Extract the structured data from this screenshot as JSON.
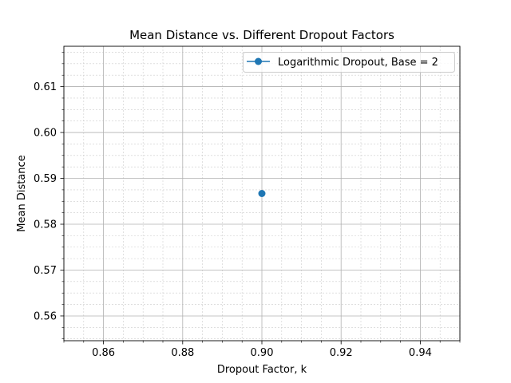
{
  "chart_data": {
    "type": "scatter",
    "title": "Mean Distance vs. Different Dropout Factors",
    "xlabel": "Dropout Factor, k",
    "ylabel": "Mean Distance",
    "xlim": [
      0.85,
      0.95
    ],
    "ylim": [
      0.5546,
      0.6188
    ],
    "x_ticks": [
      0.86,
      0.88,
      0.9,
      0.92,
      0.94
    ],
    "x_tick_labels": [
      "0.86",
      "0.88",
      "0.90",
      "0.92",
      "0.94"
    ],
    "y_ticks": [
      0.56,
      0.57,
      0.58,
      0.59,
      0.6,
      0.61
    ],
    "y_tick_labels": [
      "0.56",
      "0.57",
      "0.58",
      "0.59",
      "0.60",
      "0.61"
    ],
    "x_minor_step": 0.005,
    "y_minor_step": 0.0025,
    "grid": true,
    "minor_grid": true,
    "legend_position": "top-right",
    "series": [
      {
        "name": "Logarithmic Dropout, Base = 2",
        "color": "#1f77b4",
        "marker": "circle",
        "points": [
          {
            "x": 0.9,
            "y": 0.5867
          }
        ]
      }
    ]
  }
}
